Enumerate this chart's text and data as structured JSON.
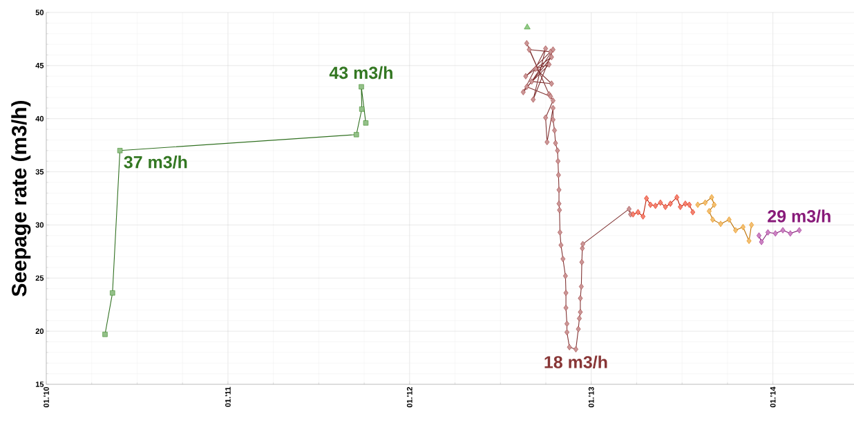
{
  "chart_data": {
    "type": "line",
    "ylabel": "Seepage rate (m3/h)",
    "xlim": [
      "2010-01-01",
      "2014-06-13"
    ],
    "ylim": [
      15,
      50
    ],
    "xticks": [
      {
        "value": "2010-01-01",
        "label": "01.'10"
      },
      {
        "value": "2011-01-01",
        "label": "01.'11"
      },
      {
        "value": "2012-01-01",
        "label": "01.'12"
      },
      {
        "value": "2013-01-01",
        "label": "01.'13"
      },
      {
        "value": "2014-01-01",
        "label": "01.'14"
      }
    ],
    "yticks": [
      15,
      20,
      25,
      30,
      35,
      40,
      45,
      50
    ],
    "grid": true,
    "series": [
      {
        "color": "#3c8c28",
        "marker": "square",
        "x": [
          "2010-04-29",
          "2010-05-14",
          "2010-05-29",
          "2011-09-16",
          "2011-09-27",
          "2011-09-26",
          "2011-10-05"
        ],
        "values": [
          19.7,
          23.6,
          37.0,
          38.5,
          40.9,
          43.0,
          39.6
        ]
      },
      {
        "type": "scatter",
        "color": "#3c9c28",
        "marker": "triangle",
        "x": [
          "2012-08-25"
        ],
        "values": [
          48.6
        ]
      },
      {
        "color": "#a04040",
        "marker": "diamond",
        "x": [
          "2012-08-24",
          "2012-10-08",
          "2012-08-29",
          "2012-10-11",
          "2012-08-22",
          "2012-10-13",
          "2012-08-17",
          "2012-10-01",
          "2012-09-06",
          "2012-10-16",
          "2012-09-03",
          "2012-10-13",
          "2012-09-11",
          "2012-10-08",
          "2012-08-24",
          "2012-10-11",
          "2012-10-16",
          "2012-10-01",
          "2012-10-04",
          "2012-10-16",
          "2012-10-16",
          "2012-10-19",
          "2012-10-21",
          "2012-10-25",
          "2012-10-26",
          "2012-10-27",
          "2012-10-28",
          "2012-10-28",
          "2012-10-29",
          "2012-10-30",
          "2012-11-01",
          "2012-11-05",
          "2012-11-10",
          "2012-11-11",
          "2012-11-11",
          "2012-11-13",
          "2012-11-13",
          "2012-11-18",
          "2012-12-01",
          "2012-12-06",
          "2012-12-08",
          "2012-12-10",
          "2012-12-10",
          "2012-12-12",
          "2012-12-13",
          "2012-12-14",
          "2012-12-15",
          "2013-03-18",
          "2013-03-21"
        ],
        "values": [
          47.1,
          42.3,
          46.5,
          46.3,
          44.0,
          45.8,
          42.5,
          46.6,
          41.8,
          46.5,
          43.5,
          43.3,
          44.7,
          45.1,
          43.0,
          42.1,
          41.7,
          40.1,
          37.8,
          41.0,
          39.9,
          38.9,
          37.7,
          37.0,
          36.0,
          34.7,
          33.3,
          32.0,
          31.4,
          29.3,
          28.1,
          26.8,
          25.2,
          23.6,
          22.2,
          20.7,
          19.9,
          18.5,
          18.3,
          20.2,
          21.2,
          21.8,
          23.1,
          24.2,
          26.5,
          27.8,
          28.2,
          31.5,
          31.0
        ]
      },
      {
        "color": "#e82000",
        "marker": "diamond",
        "x": [
          "2013-03-26",
          "2013-04-05",
          "2013-04-15",
          "2013-04-22",
          "2013-04-30",
          "2013-05-10",
          "2013-05-20",
          "2013-05-30",
          "2013-06-09",
          "2013-06-22",
          "2013-06-29",
          "2013-07-09",
          "2013-07-17",
          "2013-07-24"
        ],
        "values": [
          31.0,
          31.2,
          30.8,
          32.5,
          31.9,
          31.8,
          32.1,
          31.7,
          32.0,
          32.6,
          31.7,
          32.0,
          31.9,
          31.2
        ]
      },
      {
        "color": "#e88a00",
        "marker": "diamond",
        "x": [
          "2013-08-03",
          "2013-08-18",
          "2013-08-31",
          "2013-09-05",
          "2013-08-26",
          "2013-09-02",
          "2013-09-18",
          "2013-10-05",
          "2013-10-18",
          "2013-11-02",
          "2013-11-14",
          "2013-11-19"
        ],
        "values": [
          31.9,
          32.1,
          32.6,
          31.9,
          31.3,
          30.5,
          30.1,
          30.5,
          29.5,
          29.8,
          28.5,
          30.0
        ]
      },
      {
        "color": "#a02090",
        "marker": "diamond",
        "x": [
          "2013-12-04",
          "2013-12-09",
          "2013-12-22",
          "2014-01-06",
          "2014-01-21",
          "2014-02-05",
          "2014-02-23"
        ],
        "values": [
          29.0,
          28.4,
          29.3,
          29.2,
          29.5,
          29.2,
          29.5
        ]
      }
    ],
    "annotations": [
      {
        "text": "37 m3/h",
        "x": "2010-05-29",
        "y": 37.0
      },
      {
        "text": "43 m3/h",
        "x": "2011-09-26",
        "y": 43.0
      },
      {
        "text": "18 m3/h",
        "x": "2012-12-01",
        "y": 18.3
      },
      {
        "text": "29 m3/h",
        "x": "2014-02-23",
        "y": 29.5
      }
    ]
  }
}
